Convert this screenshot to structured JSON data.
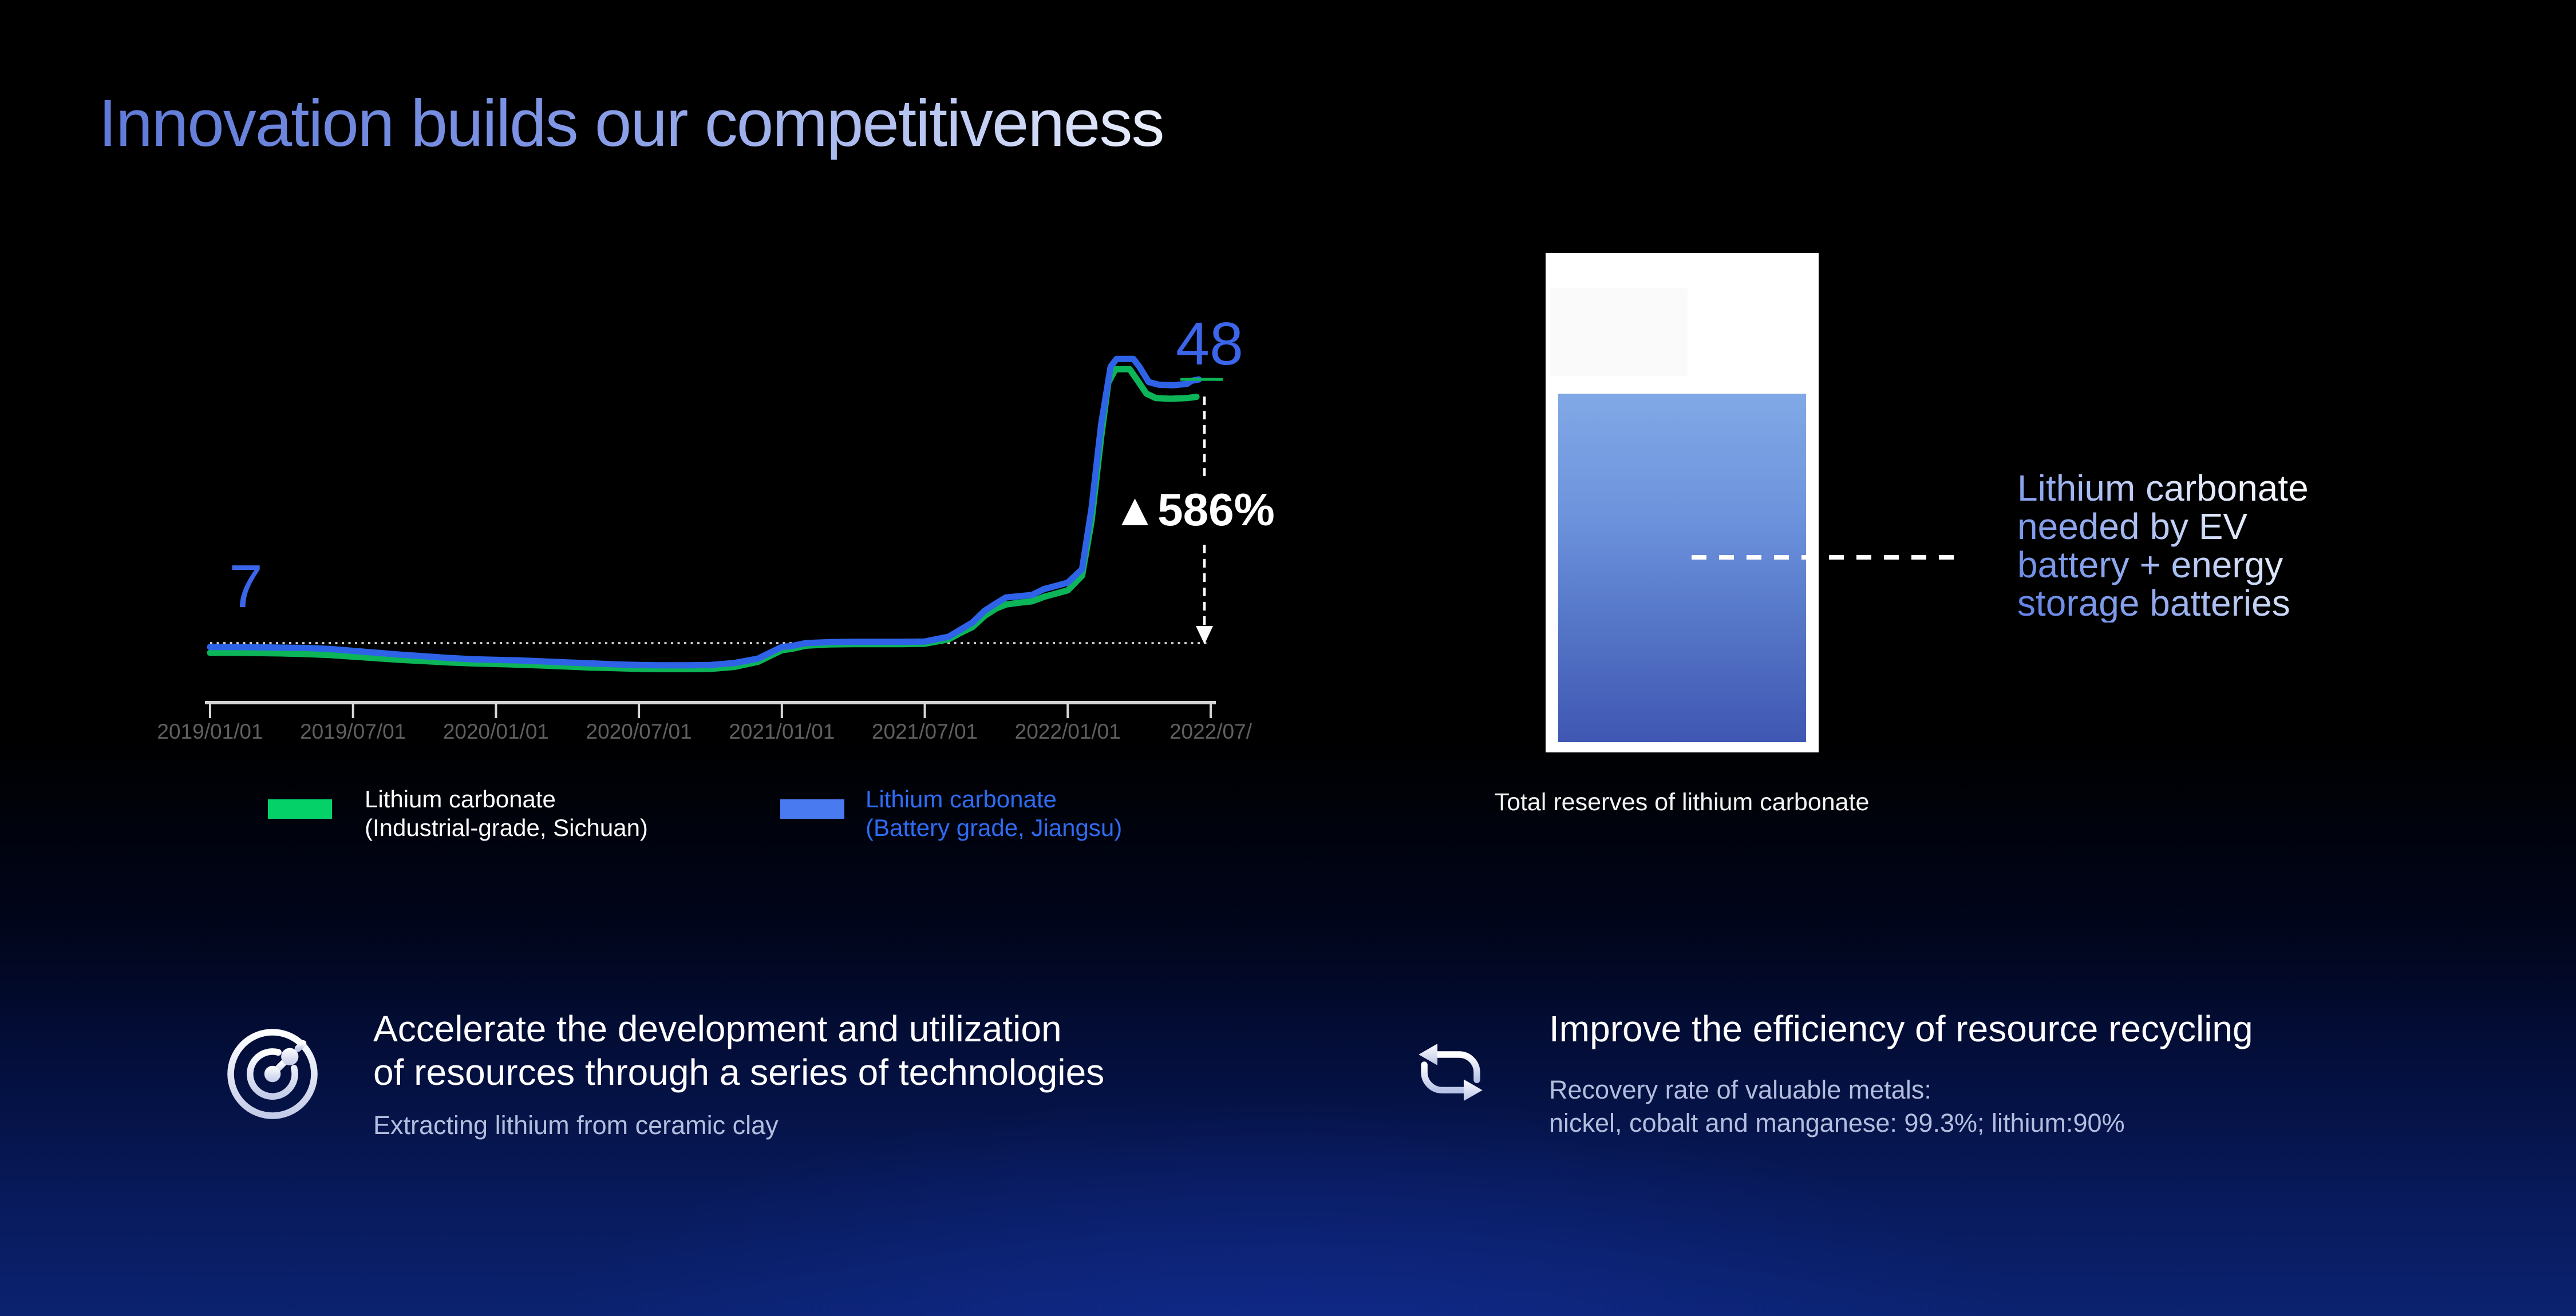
{
  "slide": {
    "title": "Innovation builds our competitiveness",
    "accent_blue": "#3b66ea",
    "background_bottom": "#0b2270"
  },
  "chart_data": {
    "type": "line",
    "title": "",
    "xlabel": "",
    "ylabel": "",
    "x_tick_labels": [
      "2019/01/01",
      "2019/07/01",
      "2020/01/01",
      "2020/07/01",
      "2021/01/01",
      "2021/07/01",
      "2022/01/01",
      "2022/07/"
    ],
    "baseline_value": 7,
    "start_label": "7",
    "end_label": "48",
    "end_value": 48,
    "change_label": "▲586%",
    "ylim_implied": [
      0,
      55
    ],
    "grid": false,
    "series": [
      {
        "name": "Lithium carbonate (Industrial-grade, Sichuan)",
        "line_color": "#0cb558",
        "points": [
          [
            0,
            5.5
          ],
          [
            1,
            5.5
          ],
          [
            2,
            5.45
          ],
          [
            3,
            5.4
          ],
          [
            4,
            5.3
          ],
          [
            5,
            5.15
          ],
          [
            6,
            4.9
          ],
          [
            7,
            4.65
          ],
          [
            8,
            4.4
          ],
          [
            9,
            4.2
          ],
          [
            10,
            4.0
          ],
          [
            11,
            3.85
          ],
          [
            12,
            3.75
          ],
          [
            13,
            3.65
          ],
          [
            14,
            3.5
          ],
          [
            15,
            3.35
          ],
          [
            16,
            3.2
          ],
          [
            17,
            3.1
          ],
          [
            18,
            3.0
          ],
          [
            19,
            2.95
          ],
          [
            20,
            2.95
          ],
          [
            21,
            3.0
          ],
          [
            22,
            3.3
          ],
          [
            23,
            4.1
          ],
          [
            24,
            5.9
          ],
          [
            24.4,
            6.1
          ],
          [
            25,
            6.6
          ],
          [
            26,
            6.8
          ],
          [
            27,
            6.85
          ],
          [
            28,
            6.85
          ],
          [
            29,
            6.85
          ],
          [
            30,
            6.9
          ],
          [
            31,
            7.6
          ],
          [
            31.5,
            8.6
          ],
          [
            32,
            9.5
          ],
          [
            32.5,
            11.2
          ],
          [
            33,
            12.4
          ],
          [
            33.4,
            13.0
          ],
          [
            34,
            13.3
          ],
          [
            34.5,
            13.5
          ],
          [
            35,
            14.2
          ],
          [
            35.5,
            14.7
          ],
          [
            36,
            15.2
          ],
          [
            36.6,
            17.5
          ],
          [
            37,
            26.0
          ],
          [
            37.4,
            39.0
          ],
          [
            37.7,
            47.5
          ],
          [
            38,
            49.6
          ],
          [
            38.6,
            49.6
          ],
          [
            38.9,
            48.0
          ],
          [
            39.3,
            45.8
          ],
          [
            39.7,
            45.1
          ],
          [
            40.3,
            45.0
          ],
          [
            41,
            45.1
          ],
          [
            41.4,
            45.3
          ]
        ]
      },
      {
        "name": "Lithium carbonate (Battery grade, Jiangsu)",
        "line_color": "#2e63e8",
        "points": [
          [
            0,
            6.4
          ],
          [
            1,
            6.4
          ],
          [
            2,
            6.35
          ],
          [
            3,
            6.3
          ],
          [
            4,
            6.25
          ],
          [
            5,
            6.1
          ],
          [
            6,
            5.8
          ],
          [
            7,
            5.5
          ],
          [
            8,
            5.2
          ],
          [
            9,
            4.95
          ],
          [
            10,
            4.7
          ],
          [
            11,
            4.5
          ],
          [
            12,
            4.4
          ],
          [
            13,
            4.3
          ],
          [
            14,
            4.15
          ],
          [
            15,
            4.0
          ],
          [
            16,
            3.85
          ],
          [
            17,
            3.7
          ],
          [
            18,
            3.6
          ],
          [
            19,
            3.55
          ],
          [
            20,
            3.55
          ],
          [
            21,
            3.6
          ],
          [
            22,
            3.9
          ],
          [
            23,
            4.6
          ],
          [
            24,
            6.4
          ],
          [
            24.4,
            6.55
          ],
          [
            25,
            7.0
          ],
          [
            26,
            7.15
          ],
          [
            27,
            7.2
          ],
          [
            28,
            7.2
          ],
          [
            29,
            7.2
          ],
          [
            30,
            7.25
          ],
          [
            31,
            8.0
          ],
          [
            31.5,
            9.1
          ],
          [
            32,
            10.2
          ],
          [
            32.5,
            12.0
          ],
          [
            33,
            13.2
          ],
          [
            33.4,
            14.1
          ],
          [
            34,
            14.3
          ],
          [
            34.5,
            14.5
          ],
          [
            35,
            15.4
          ],
          [
            35.5,
            15.9
          ],
          [
            36,
            16.4
          ],
          [
            36.6,
            18.5
          ],
          [
            37,
            28.0
          ],
          [
            37.4,
            41.0
          ],
          [
            37.8,
            50.0
          ],
          [
            38.05,
            51.2
          ],
          [
            38.75,
            51.2
          ],
          [
            39,
            50.0
          ],
          [
            39.4,
            47.6
          ],
          [
            39.8,
            47.2
          ],
          [
            40.4,
            47.1
          ],
          [
            41,
            47.3
          ],
          [
            41.2,
            47.8
          ],
          [
            41.5,
            48.0
          ]
        ]
      }
    ],
    "legend": [
      {
        "swatch_color": "#05d169",
        "text_color": "#ffffff",
        "lines": [
          "Lithium carbonate",
          "(Industrial-grade, Sichuan)"
        ]
      },
      {
        "swatch_color": "#4a7af0",
        "text_color": "#2f6cf2",
        "lines": [
          "Lithium carbonate",
          "(Battery grade, Jiangsu)"
        ]
      }
    ]
  },
  "reserves": {
    "caption": "Total reserves of lithium carbonate",
    "note_lines": [
      "Lithium carbonate",
      "needed by EV",
      "battery + energy",
      "storage batteries"
    ]
  },
  "features": [
    {
      "icon": "radar-target-icon",
      "heading_lines": [
        "Accelerate the development and utilization",
        "of resources through a series of technologies"
      ],
      "sub_lines": [
        "Extracting lithium from ceramic clay"
      ]
    },
    {
      "icon": "recycle-loop-icon",
      "heading_lines": [
        "Improve the efficiency of resource recycling"
      ],
      "sub_lines": [
        "Recovery rate of valuable metals:",
        "nickel, cobalt and  manganese: 99.3%; lithium:90%"
      ]
    }
  ]
}
